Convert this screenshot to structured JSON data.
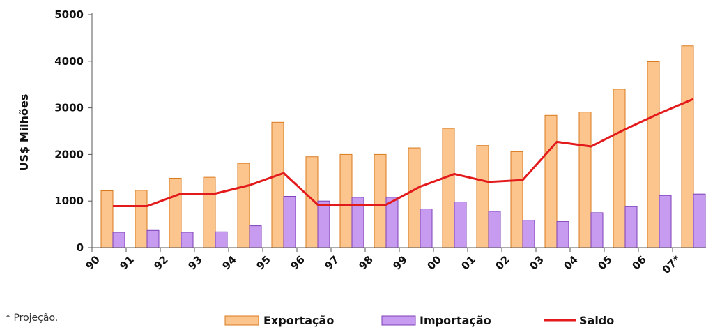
{
  "chart_data": {
    "type": "bar",
    "categories": [
      "90",
      "91",
      "92",
      "93",
      "94",
      "95",
      "96",
      "97",
      "98",
      "99",
      "00",
      "01",
      "02",
      "03",
      "04",
      "05",
      "06",
      "07*"
    ],
    "series": [
      {
        "name": "Exportação",
        "kind": "bar",
        "color": "#fcc58d",
        "values": [
          1220,
          1230,
          1490,
          1510,
          1810,
          2690,
          1950,
          2000,
          2000,
          2140,
          2560,
          2190,
          2060,
          2840,
          2910,
          3400,
          3990,
          4330
        ]
      },
      {
        "name": "Importação",
        "kind": "bar",
        "color": "#c79cf0",
        "values": [
          330,
          370,
          330,
          340,
          470,
          1100,
          1000,
          1080,
          1080,
          830,
          980,
          780,
          590,
          560,
          750,
          880,
          1120,
          1150
        ]
      },
      {
        "name": "Saldo",
        "kind": "line",
        "color": "#e31a1c",
        "values": [
          890,
          890,
          1160,
          1160,
          1340,
          1600,
          920,
          920,
          920,
          1310,
          1580,
          1410,
          1450,
          2270,
          2170,
          2540,
          2880,
          3190
        ]
      }
    ],
    "ylabel": "US$ Milhões",
    "yticks": [
      0,
      1000,
      2000,
      3000,
      4000,
      5000
    ],
    "ylim": [
      0,
      5000
    ],
    "grid": false,
    "legend_position": "bottom",
    "footnote": "* Projeção."
  }
}
